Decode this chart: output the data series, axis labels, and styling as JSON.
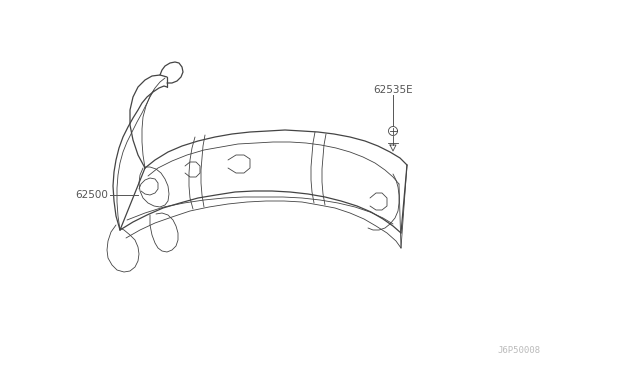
{
  "bg_color": "#ffffff",
  "line_color": "#444444",
  "label_color": "#555555",
  "watermark": "J6P50008",
  "watermark_color": "#bbbbbb",
  "label_62535E": "62535E",
  "label_62300": "62500",
  "fig_width": 6.4,
  "fig_height": 3.72,
  "dpi": 100
}
